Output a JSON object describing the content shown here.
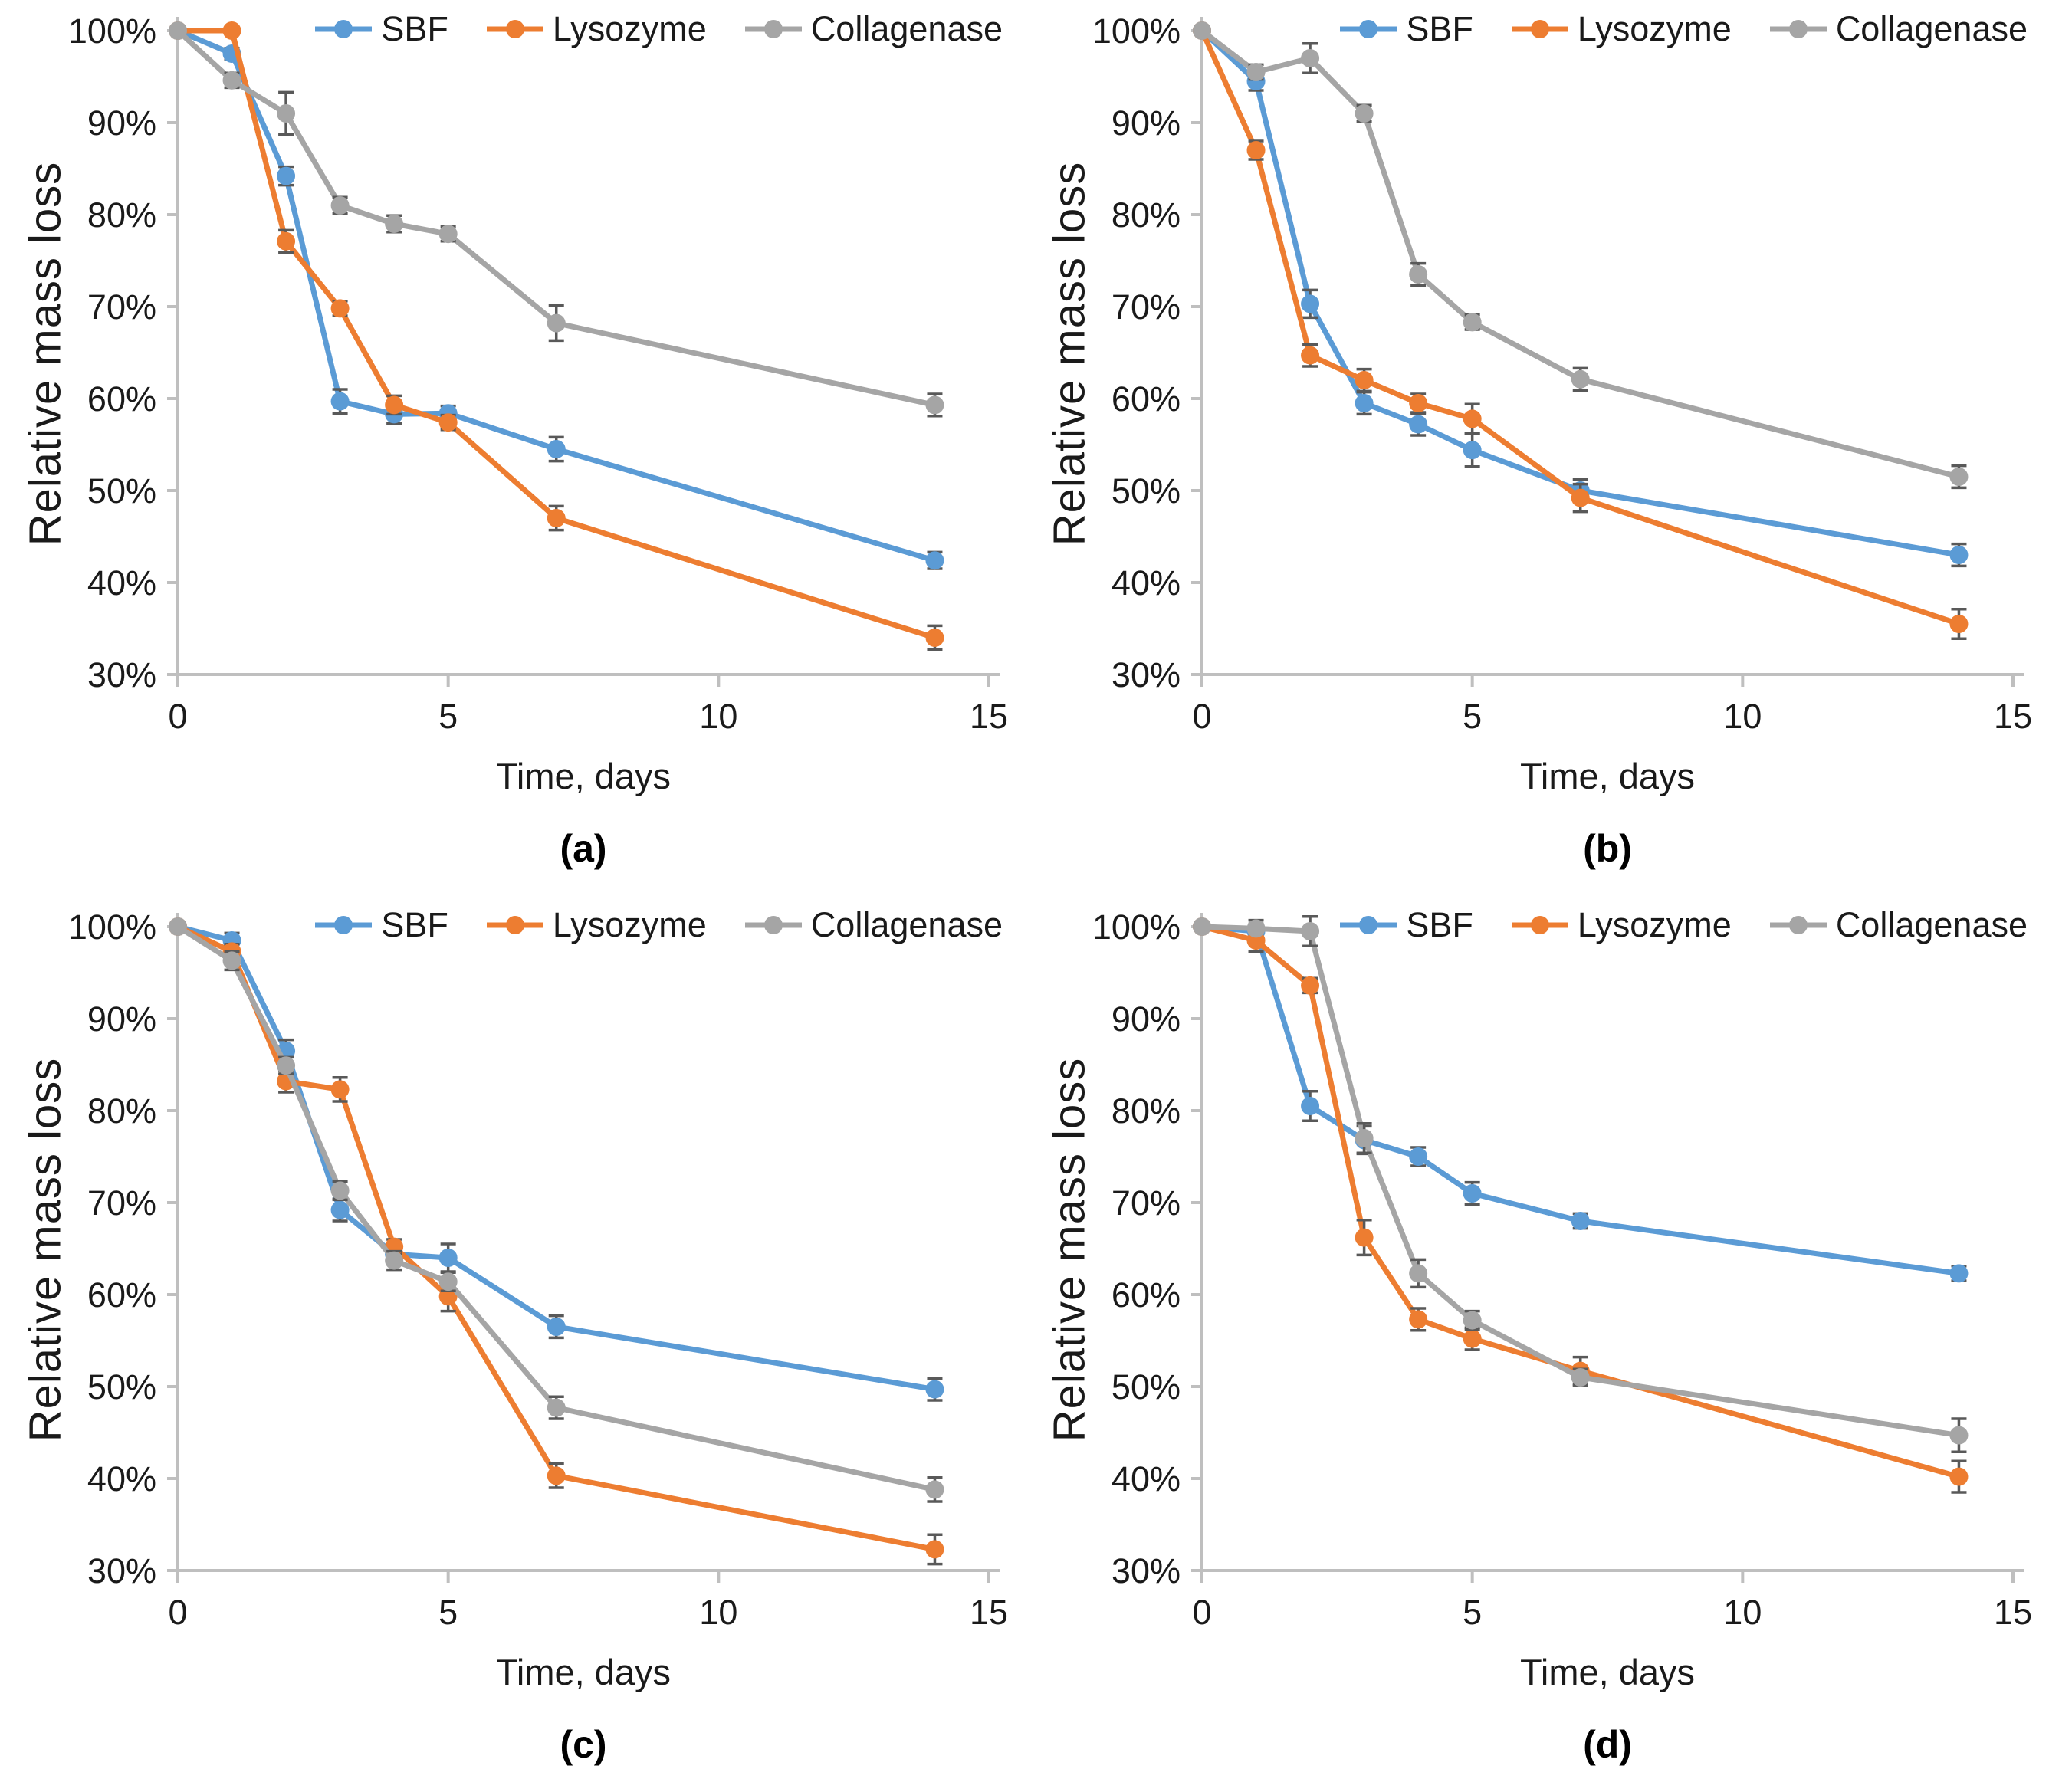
{
  "figure": {
    "ylabel": "Relative mass loss",
    "xlabel": "Time, days",
    "legend_labels": [
      "SBF",
      "Lysozyme",
      "Collagenase"
    ],
    "colors": {
      "sbf": "#5B9BD5",
      "lysozyme": "#ED7D31",
      "collagenase": "#A5A5A5",
      "error_bar": "#595959",
      "axis": "#BFBFBF",
      "text": "#262626"
    }
  },
  "chart_data": [
    {
      "type": "line",
      "caption": "(a)",
      "title": "",
      "xlabel": "Time, days",
      "ylabel": "Relative mass loss",
      "x": [
        0,
        1,
        2,
        3,
        4,
        5,
        7,
        14
      ],
      "xlim": [
        0,
        15
      ],
      "ylim": [
        30,
        100
      ],
      "xticks": [
        0,
        5,
        10,
        15
      ],
      "yticks": [
        100,
        90,
        80,
        70,
        60,
        50,
        40,
        30
      ],
      "grid": false,
      "legend_position": "top",
      "axis_color": "#BFBFBF",
      "errbar_color": "#595959",
      "series": [
        {
          "name": "SBF",
          "color": "#5B9BD5",
          "values": [
            100,
            97.5,
            84.2,
            59.7,
            58.3,
            58.4,
            54.5,
            42.4
          ],
          "err": [
            0.3,
            0.6,
            1.0,
            1.3,
            1.0,
            0.8,
            1.3,
            0.9
          ]
        },
        {
          "name": "Lysozyme",
          "color": "#ED7D31",
          "values": [
            100,
            100,
            77.1,
            69.8,
            59.3,
            57.4,
            47.0,
            34.0
          ],
          "err": [
            0.3,
            0.3,
            1.2,
            0.8,
            1.0,
            0.8,
            1.3,
            1.3
          ]
        },
        {
          "name": "Collagenase",
          "color": "#A5A5A5",
          "values": [
            100,
            94.6,
            91.0,
            81.0,
            79.0,
            77.9,
            68.2,
            59.3
          ],
          "err": [
            0.3,
            0.8,
            2.3,
            0.9,
            0.9,
            0.8,
            1.9,
            1.2
          ]
        }
      ]
    },
    {
      "type": "line",
      "caption": "(b)",
      "title": "",
      "xlabel": "Time, days",
      "ylabel": "Relative mass loss",
      "x": [
        0,
        1,
        2,
        3,
        4,
        5,
        7,
        14
      ],
      "xlim": [
        0,
        15
      ],
      "ylim": [
        30,
        100
      ],
      "xticks": [
        0,
        5,
        10,
        15
      ],
      "yticks": [
        100,
        90,
        80,
        70,
        60,
        50,
        40,
        30
      ],
      "grid": false,
      "legend_position": "top",
      "axis_color": "#BFBFBF",
      "errbar_color": "#595959",
      "series": [
        {
          "name": "SBF",
          "color": "#5B9BD5",
          "values": [
            100,
            94.5,
            70.3,
            59.5,
            57.2,
            54.4,
            50.0,
            43.0
          ],
          "err": [
            0.3,
            1.0,
            1.5,
            1.2,
            1.2,
            1.8,
            1.2,
            1.2
          ]
        },
        {
          "name": "Lysozyme",
          "color": "#ED7D31",
          "values": [
            100,
            87.0,
            64.7,
            62.0,
            59.5,
            57.8,
            49.2,
            35.5
          ],
          "err": [
            0.3,
            1.0,
            1.2,
            1.2,
            1.0,
            1.6,
            1.5,
            1.6
          ]
        },
        {
          "name": "Collagenase",
          "color": "#A5A5A5",
          "values": [
            100,
            95.5,
            97.0,
            91.0,
            73.5,
            68.3,
            62.1,
            51.5
          ],
          "err": [
            0.3,
            0.8,
            1.6,
            0.9,
            1.2,
            0.8,
            1.2,
            1.2
          ]
        }
      ]
    },
    {
      "type": "line",
      "caption": "(c)",
      "title": "",
      "xlabel": "Time, days",
      "ylabel": "Relative mass loss",
      "x": [
        0,
        1,
        2,
        3,
        4,
        5,
        7,
        14
      ],
      "xlim": [
        0,
        15
      ],
      "ylim": [
        30,
        100
      ],
      "xticks": [
        0,
        5,
        10,
        15
      ],
      "yticks": [
        100,
        90,
        80,
        70,
        60,
        50,
        40,
        30
      ],
      "grid": false,
      "legend_position": "top",
      "axis_color": "#BFBFBF",
      "errbar_color": "#595959",
      "series": [
        {
          "name": "SBF",
          "color": "#5B9BD5",
          "values": [
            100,
            98.5,
            86.5,
            69.2,
            64.4,
            64.0,
            56.5,
            49.7
          ],
          "err": [
            0.3,
            0.8,
            1.2,
            1.2,
            0.9,
            1.5,
            1.2,
            1.2
          ]
        },
        {
          "name": "Lysozyme",
          "color": "#ED7D31",
          "values": [
            100,
            97.3,
            83.2,
            82.3,
            65.2,
            59.8,
            40.3,
            32.3
          ],
          "err": [
            0.3,
            0.8,
            1.2,
            1.3,
            0.8,
            1.6,
            1.3,
            1.6
          ]
        },
        {
          "name": "Collagenase",
          "color": "#A5A5A5",
          "values": [
            100,
            96.3,
            84.9,
            71.3,
            63.7,
            61.4,
            47.7,
            38.8
          ],
          "err": [
            0.3,
            1.0,
            0.9,
            1.0,
            1.0,
            1.0,
            1.2,
            1.3
          ]
        }
      ]
    },
    {
      "type": "line",
      "caption": "(d)",
      "title": "",
      "xlabel": "Time, days",
      "ylabel": "Relative mass loss",
      "x": [
        0,
        1,
        2,
        3,
        4,
        5,
        7,
        14
      ],
      "xlim": [
        0,
        15
      ],
      "ylim": [
        30,
        100
      ],
      "xticks": [
        0,
        5,
        10,
        15
      ],
      "yticks": [
        100,
        90,
        80,
        70,
        60,
        50,
        40,
        30
      ],
      "grid": false,
      "legend_position": "top",
      "axis_color": "#BFBFBF",
      "errbar_color": "#595959",
      "series": [
        {
          "name": "SBF",
          "color": "#5B9BD5",
          "values": [
            100,
            99.5,
            80.5,
            76.8,
            75.0,
            71.0,
            68.0,
            62.3
          ],
          "err": [
            0.3,
            1.2,
            1.6,
            1.5,
            1.0,
            1.2,
            0.8,
            0.8
          ]
        },
        {
          "name": "Lysozyme",
          "color": "#ED7D31",
          "values": [
            100,
            98.5,
            93.6,
            66.2,
            57.3,
            55.2,
            51.7,
            40.2
          ],
          "err": [
            0.3,
            1.2,
            0.8,
            1.9,
            1.2,
            1.2,
            1.5,
            1.7
          ]
        },
        {
          "name": "Collagenase",
          "color": "#A5A5A5",
          "values": [
            100,
            99.8,
            99.5,
            77.0,
            62.3,
            57.2,
            51.0,
            44.7
          ],
          "err": [
            0.3,
            0.5,
            1.6,
            1.6,
            1.5,
            1.0,
            0.9,
            1.8
          ]
        }
      ]
    }
  ]
}
